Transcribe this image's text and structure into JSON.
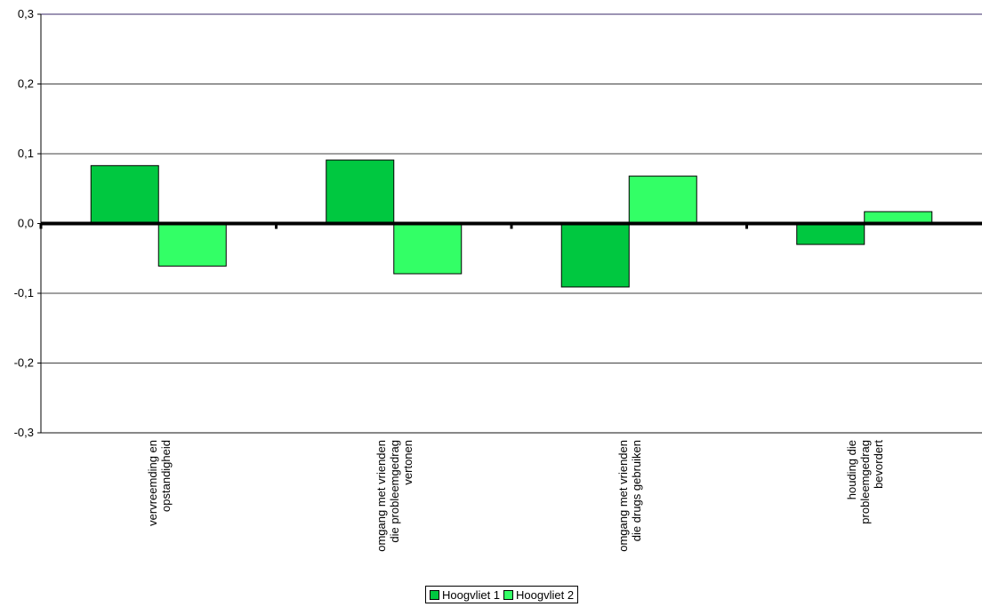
{
  "chart_data": {
    "type": "bar",
    "categories": [
      [
        "vervreemding en",
        "opstandigheid"
      ],
      [
        "omgang met vrienden",
        "die probleemgedrag",
        "vertonen"
      ],
      [
        "omgang met vrienden",
        "die drugs gebruiken"
      ],
      [
        "houding die",
        "probleemgedrag",
        "bevordert"
      ]
    ],
    "series": [
      {
        "name": "Hoogvliet 1",
        "values": [
          0.083,
          0.091,
          -0.091,
          -0.03
        ],
        "color": "#00c840"
      },
      {
        "name": "Hoogvliet 2",
        "values": [
          -0.061,
          -0.072,
          0.068,
          0.017
        ],
        "color": "#33ff66"
      }
    ],
    "yticks": [
      "0,3",
      "0,2",
      "0,1",
      "0,0",
      "-0,1",
      "-0,2",
      "-0,3"
    ],
    "ylim": [
      -0.3,
      0.3
    ],
    "grid": true,
    "legend": "bottom"
  }
}
